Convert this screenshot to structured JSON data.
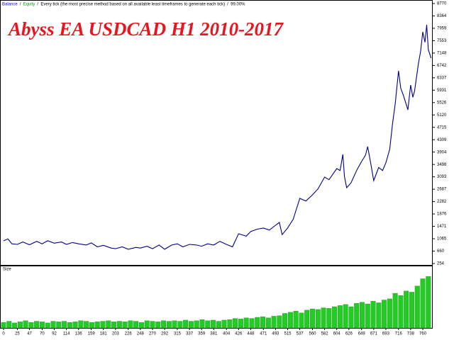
{
  "chart_data": [
    {
      "type": "line",
      "title": "Abyss EA   USDCAD  H1      2010-2017",
      "legend_items": [
        "Balance",
        "Equity",
        "Every tick (the most precise method based on all available least timeframes to generate each tick)",
        "99.00%"
      ],
      "legend_colors": [
        "#0000ff",
        "#00a000",
        "#000000",
        "#000000"
      ],
      "x": [
        0,
        8,
        15,
        25,
        35,
        47,
        60,
        70,
        80,
        92,
        105,
        114,
        125,
        136,
        150,
        159,
        170,
        181,
        195,
        203,
        215,
        226,
        240,
        248,
        260,
        270,
        282,
        292,
        305,
        315,
        325,
        337,
        350,
        359,
        370,
        381,
        392,
        404,
        415,
        426,
        440,
        448,
        460,
        471,
        482,
        493,
        500,
        505,
        515,
        525,
        537,
        548,
        560,
        570,
        582,
        590,
        604,
        610,
        615,
        618,
        622,
        630,
        640,
        649,
        656,
        660,
        666,
        671,
        680,
        687,
        693,
        700,
        705,
        710,
        716,
        720,
        725,
        733,
        738,
        742,
        745,
        752,
        756,
        760,
        764,
        767,
        770,
        775
      ],
      "series": [
        {
          "name": "Balance",
          "color": "#00008b",
          "values": [
            996,
            1060,
            900,
            880,
            960,
            870,
            980,
            900,
            1000,
            920,
            960,
            880,
            940,
            900,
            860,
            930,
            800,
            850,
            760,
            740,
            800,
            720,
            780,
            760,
            820,
            740,
            860,
            720,
            860,
            900,
            800,
            880,
            860,
            820,
            900,
            860,
            980,
            880,
            800,
            1228,
            1150,
            1300,
            1380,
            1414,
            1350,
            1507,
            1600,
            1200,
            1420,
            1700,
            2388,
            2300,
            2505,
            2700,
            3084,
            3000,
            3363,
            3300,
            3827,
            3100,
            2737,
            2900,
            3300,
            3595,
            3800,
            4082,
            3500,
            2968,
            3400,
            3300,
            3548,
            4000,
            4825,
            5500,
            6564,
            6000,
            5752,
            5288,
            6101,
            5700,
            5900,
            6797,
            7200,
            7841,
            7500,
            8073,
            7260,
            6982
          ]
        }
      ],
      "xlim": [
        0,
        775
      ],
      "xticks": [
        0,
        25,
        47,
        70,
        92,
        114,
        136,
        159,
        181,
        203,
        226,
        248,
        270,
        292,
        315,
        337,
        359,
        381,
        404,
        426,
        448,
        471,
        493,
        515,
        537,
        560,
        582,
        604,
        626,
        649,
        671,
        693,
        716,
        738,
        760
      ],
      "ylim": [
        254,
        8770
      ],
      "yticks": [
        8770,
        8364,
        7959,
        7553,
        7148,
        6742,
        6337,
        5931,
        5526,
        5120,
        4715,
        4309,
        3904,
        3498,
        3093,
        2687,
        2282,
        1876,
        1471,
        1065,
        660,
        254
      ]
    },
    {
      "type": "bar",
      "title": "Size",
      "color": "#22cc22",
      "x": [
        0,
        10,
        20,
        30,
        40,
        50,
        60,
        70,
        80,
        90,
        100,
        110,
        120,
        130,
        140,
        150,
        160,
        170,
        180,
        190,
        200,
        210,
        220,
        230,
        240,
        250,
        260,
        270,
        280,
        290,
        300,
        310,
        320,
        330,
        340,
        350,
        360,
        370,
        380,
        390,
        400,
        410,
        420,
        430,
        440,
        450,
        460,
        470,
        480,
        490,
        500,
        510,
        520,
        530,
        540,
        550,
        560,
        570,
        580,
        590,
        600,
        610,
        620,
        630,
        640,
        650,
        660,
        670,
        680,
        690,
        700,
        710,
        720,
        730,
        740,
        750,
        760,
        770
      ],
      "values": [
        10,
        12,
        9,
        11,
        13,
        10,
        12,
        11,
        9,
        12,
        11,
        12,
        10,
        11,
        13,
        12,
        10,
        11,
        12,
        13,
        11,
        12,
        11,
        13,
        12,
        10,
        13,
        12,
        11,
        13,
        12,
        13,
        12,
        14,
        12,
        13,
        15,
        13,
        14,
        12,
        14,
        15,
        17,
        16,
        18,
        17,
        19,
        20,
        18,
        21,
        22,
        26,
        28,
        30,
        27,
        32,
        34,
        33,
        36,
        35,
        38,
        40,
        42,
        38,
        44,
        46,
        43,
        48,
        45,
        50,
        52,
        62,
        58,
        66,
        64,
        75,
        88,
        92
      ],
      "ylim": [
        0,
        100
      ]
    }
  ]
}
